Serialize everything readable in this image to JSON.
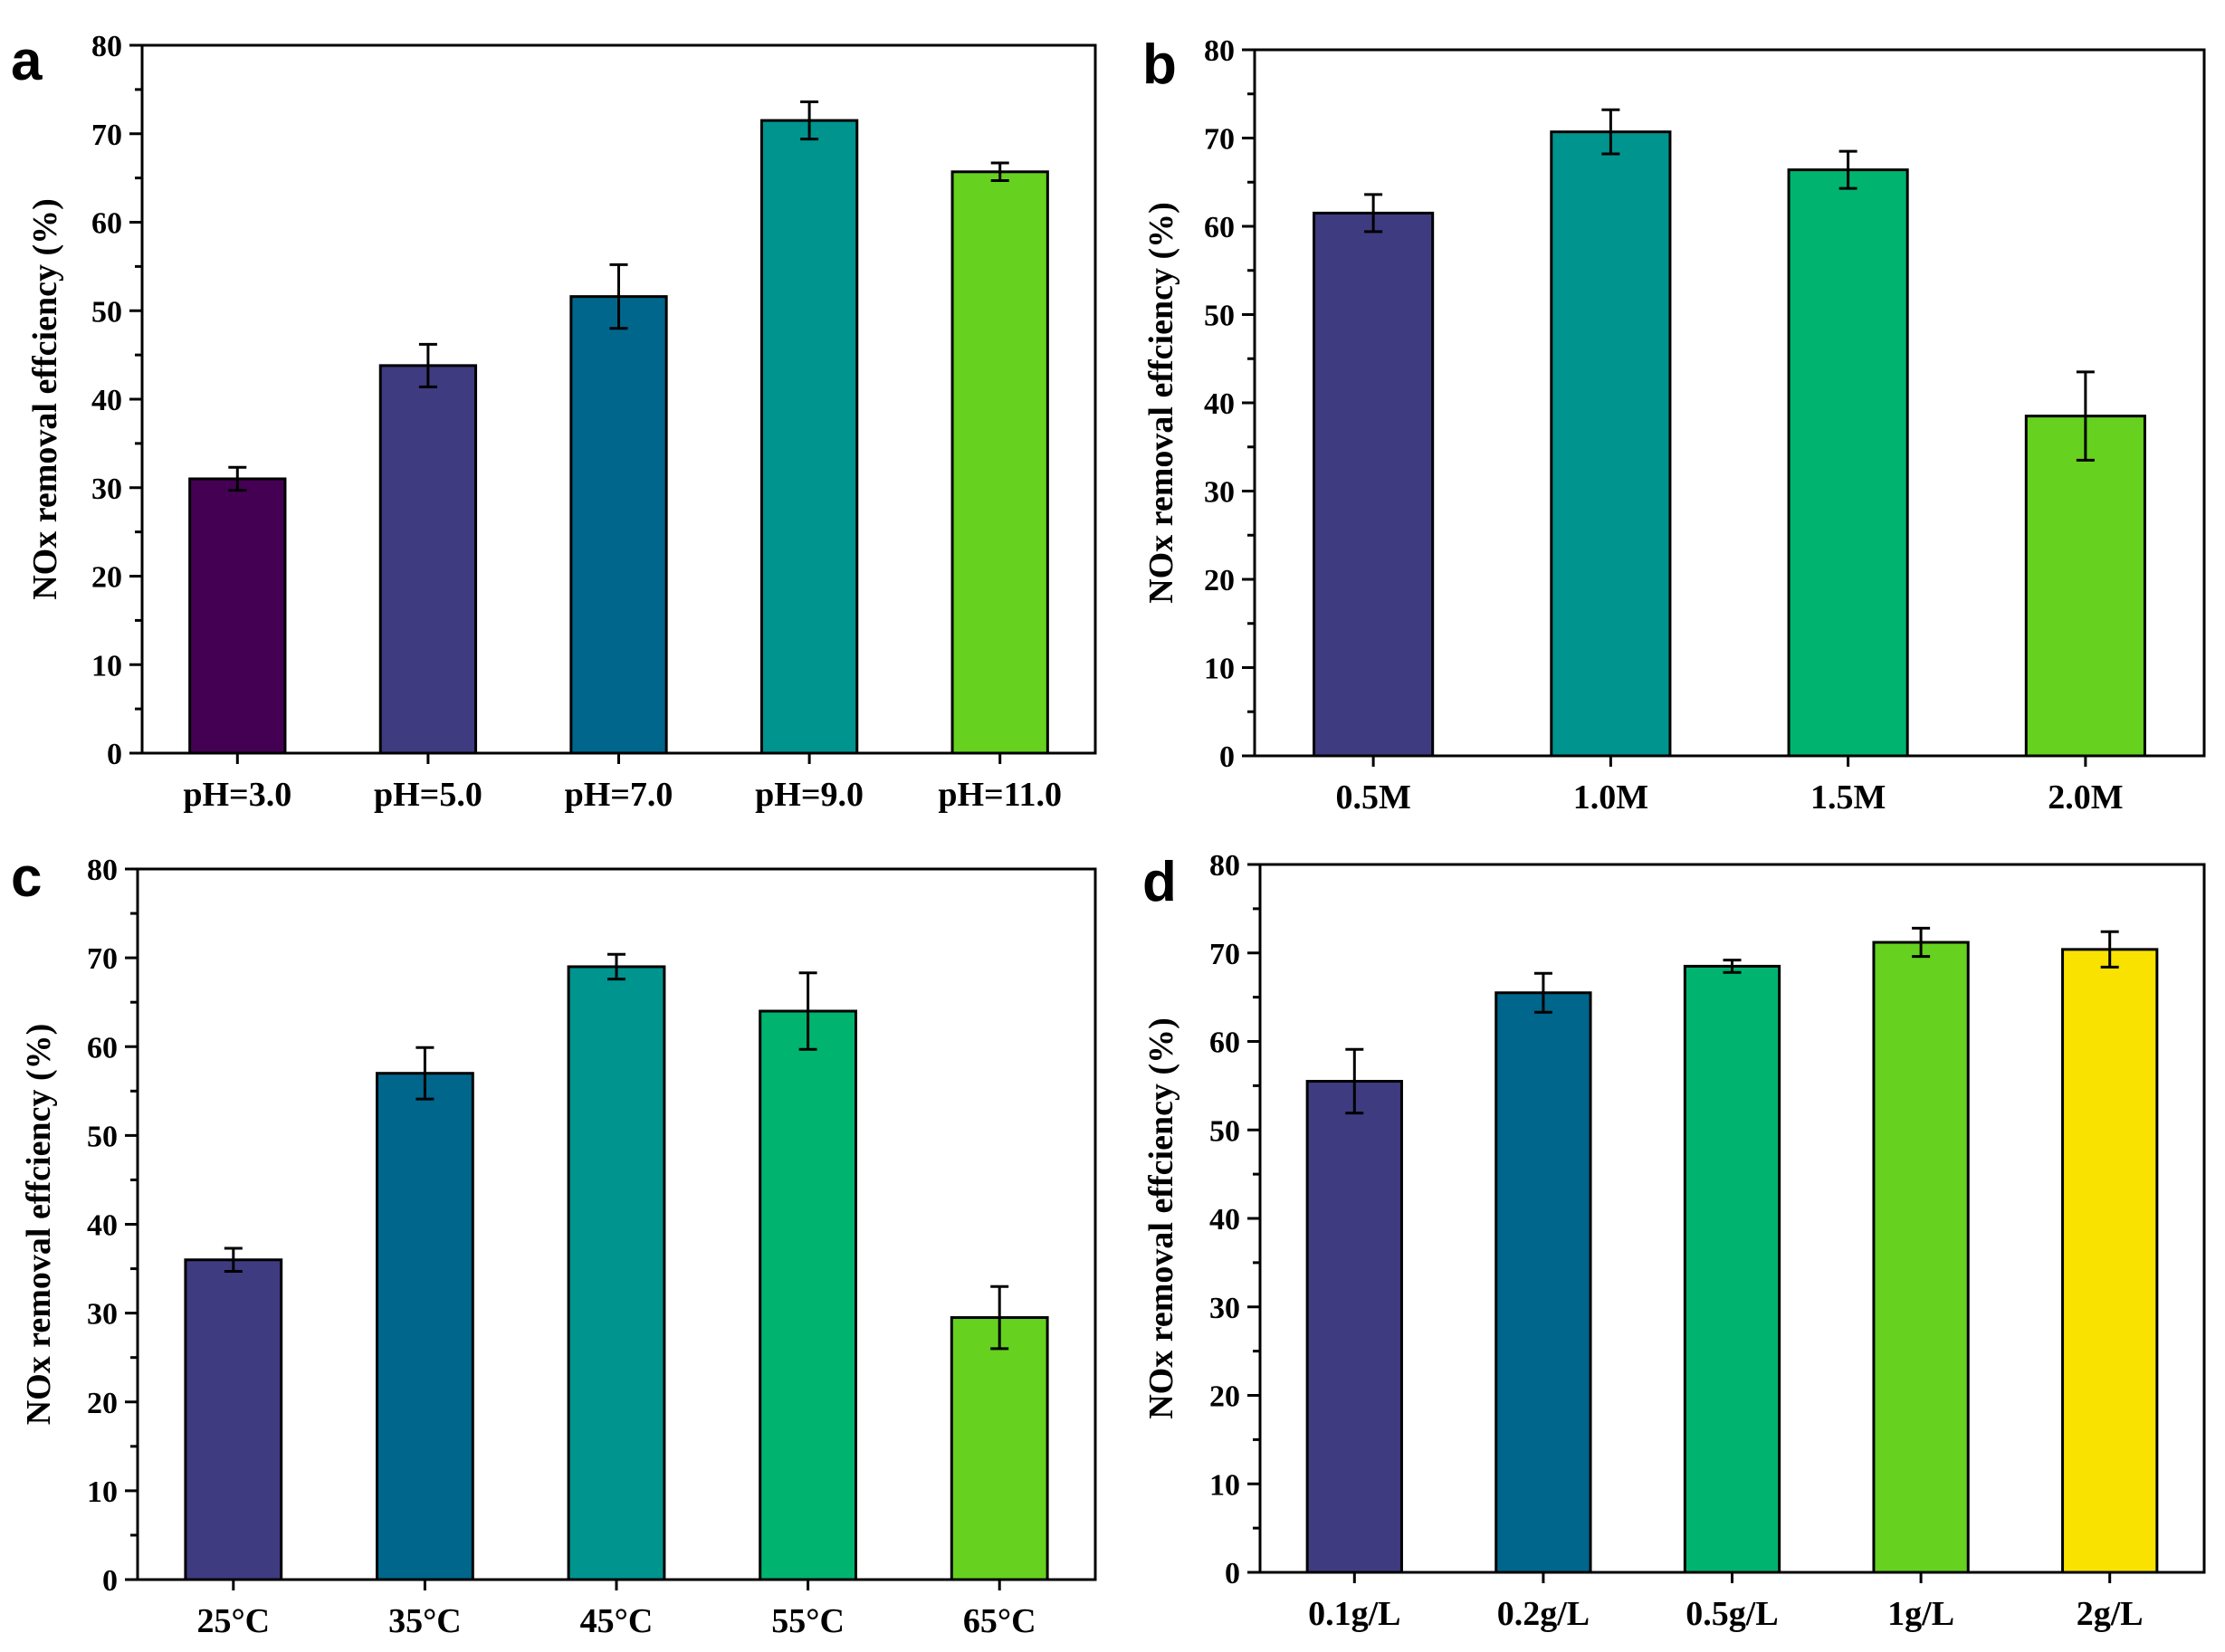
{
  "chart_data": [
    {
      "type": "bar",
      "panel_label": "a",
      "categories": [
        "pH=3.0",
        "pH=5.0",
        "pH=7.0",
        "pH=9.0",
        "pH=11.0"
      ],
      "values": [
        31,
        43.8,
        51.6,
        71.5,
        65.7
      ],
      "errors": [
        1.3,
        2.4,
        3.6,
        2.1,
        1.0
      ],
      "colors": [
        "#440154",
        "#3e3b80",
        "#00668c",
        "#00948f",
        "#66d11e"
      ],
      "ylabel": "NOx removal effciency (%)",
      "xlabel": "",
      "ylim": [
        0,
        80
      ],
      "yticks": [
        "0",
        "10",
        "20",
        "30",
        "40",
        "50",
        "60",
        "70",
        "80"
      ]
    },
    {
      "type": "bar",
      "panel_label": "b",
      "categories": [
        "0.5M",
        "1.0M",
        "1.5M",
        "2.0M"
      ],
      "values": [
        61.5,
        70.7,
        66.4,
        38.5
      ],
      "errors": [
        2.1,
        2.5,
        2.1,
        5.0
      ],
      "colors": [
        "#3e3b80",
        "#00948f",
        "#00b470",
        "#66d11e"
      ],
      "ylabel": "NOx removal effciency (%)",
      "xlabel": "",
      "ylim": [
        0,
        80
      ],
      "yticks": [
        "0",
        "10",
        "20",
        "30",
        "40",
        "50",
        "60",
        "70",
        "80"
      ]
    },
    {
      "type": "bar",
      "panel_label": "c",
      "categories": [
        "25°C",
        "35°C",
        "45°C",
        "55°C",
        "65°C"
      ],
      "values": [
        36,
        57,
        69,
        64,
        29.5
      ],
      "errors": [
        1.3,
        2.9,
        1.4,
        4.3,
        3.5
      ],
      "colors": [
        "#3e3b80",
        "#00668c",
        "#00948f",
        "#00b470",
        "#66d11e"
      ],
      "ylabel": "NOx removal effciency (%)",
      "xlabel": "",
      "ylim": [
        0,
        80
      ],
      "yticks": [
        "0",
        "10",
        "20",
        "30",
        "40",
        "50",
        "60",
        "70",
        "80"
      ]
    },
    {
      "type": "bar",
      "panel_label": "d",
      "categories": [
        "0.1g/L",
        "0.2g/L",
        "0.5g/L",
        "1g/L",
        "2g/L"
      ],
      "values": [
        55.5,
        65.5,
        68.5,
        71.2,
        70.4
      ],
      "errors": [
        3.6,
        2.2,
        0.7,
        1.6,
        2.0
      ],
      "colors": [
        "#3e3b80",
        "#00668c",
        "#00b470",
        "#66d11e",
        "#f9e200"
      ],
      "ylabel": "NOx removal effciency (%)",
      "xlabel": "",
      "ylim": [
        0,
        80
      ],
      "yticks": [
        "0",
        "10",
        "20",
        "30",
        "40",
        "50",
        "60",
        "70",
        "80"
      ]
    }
  ]
}
